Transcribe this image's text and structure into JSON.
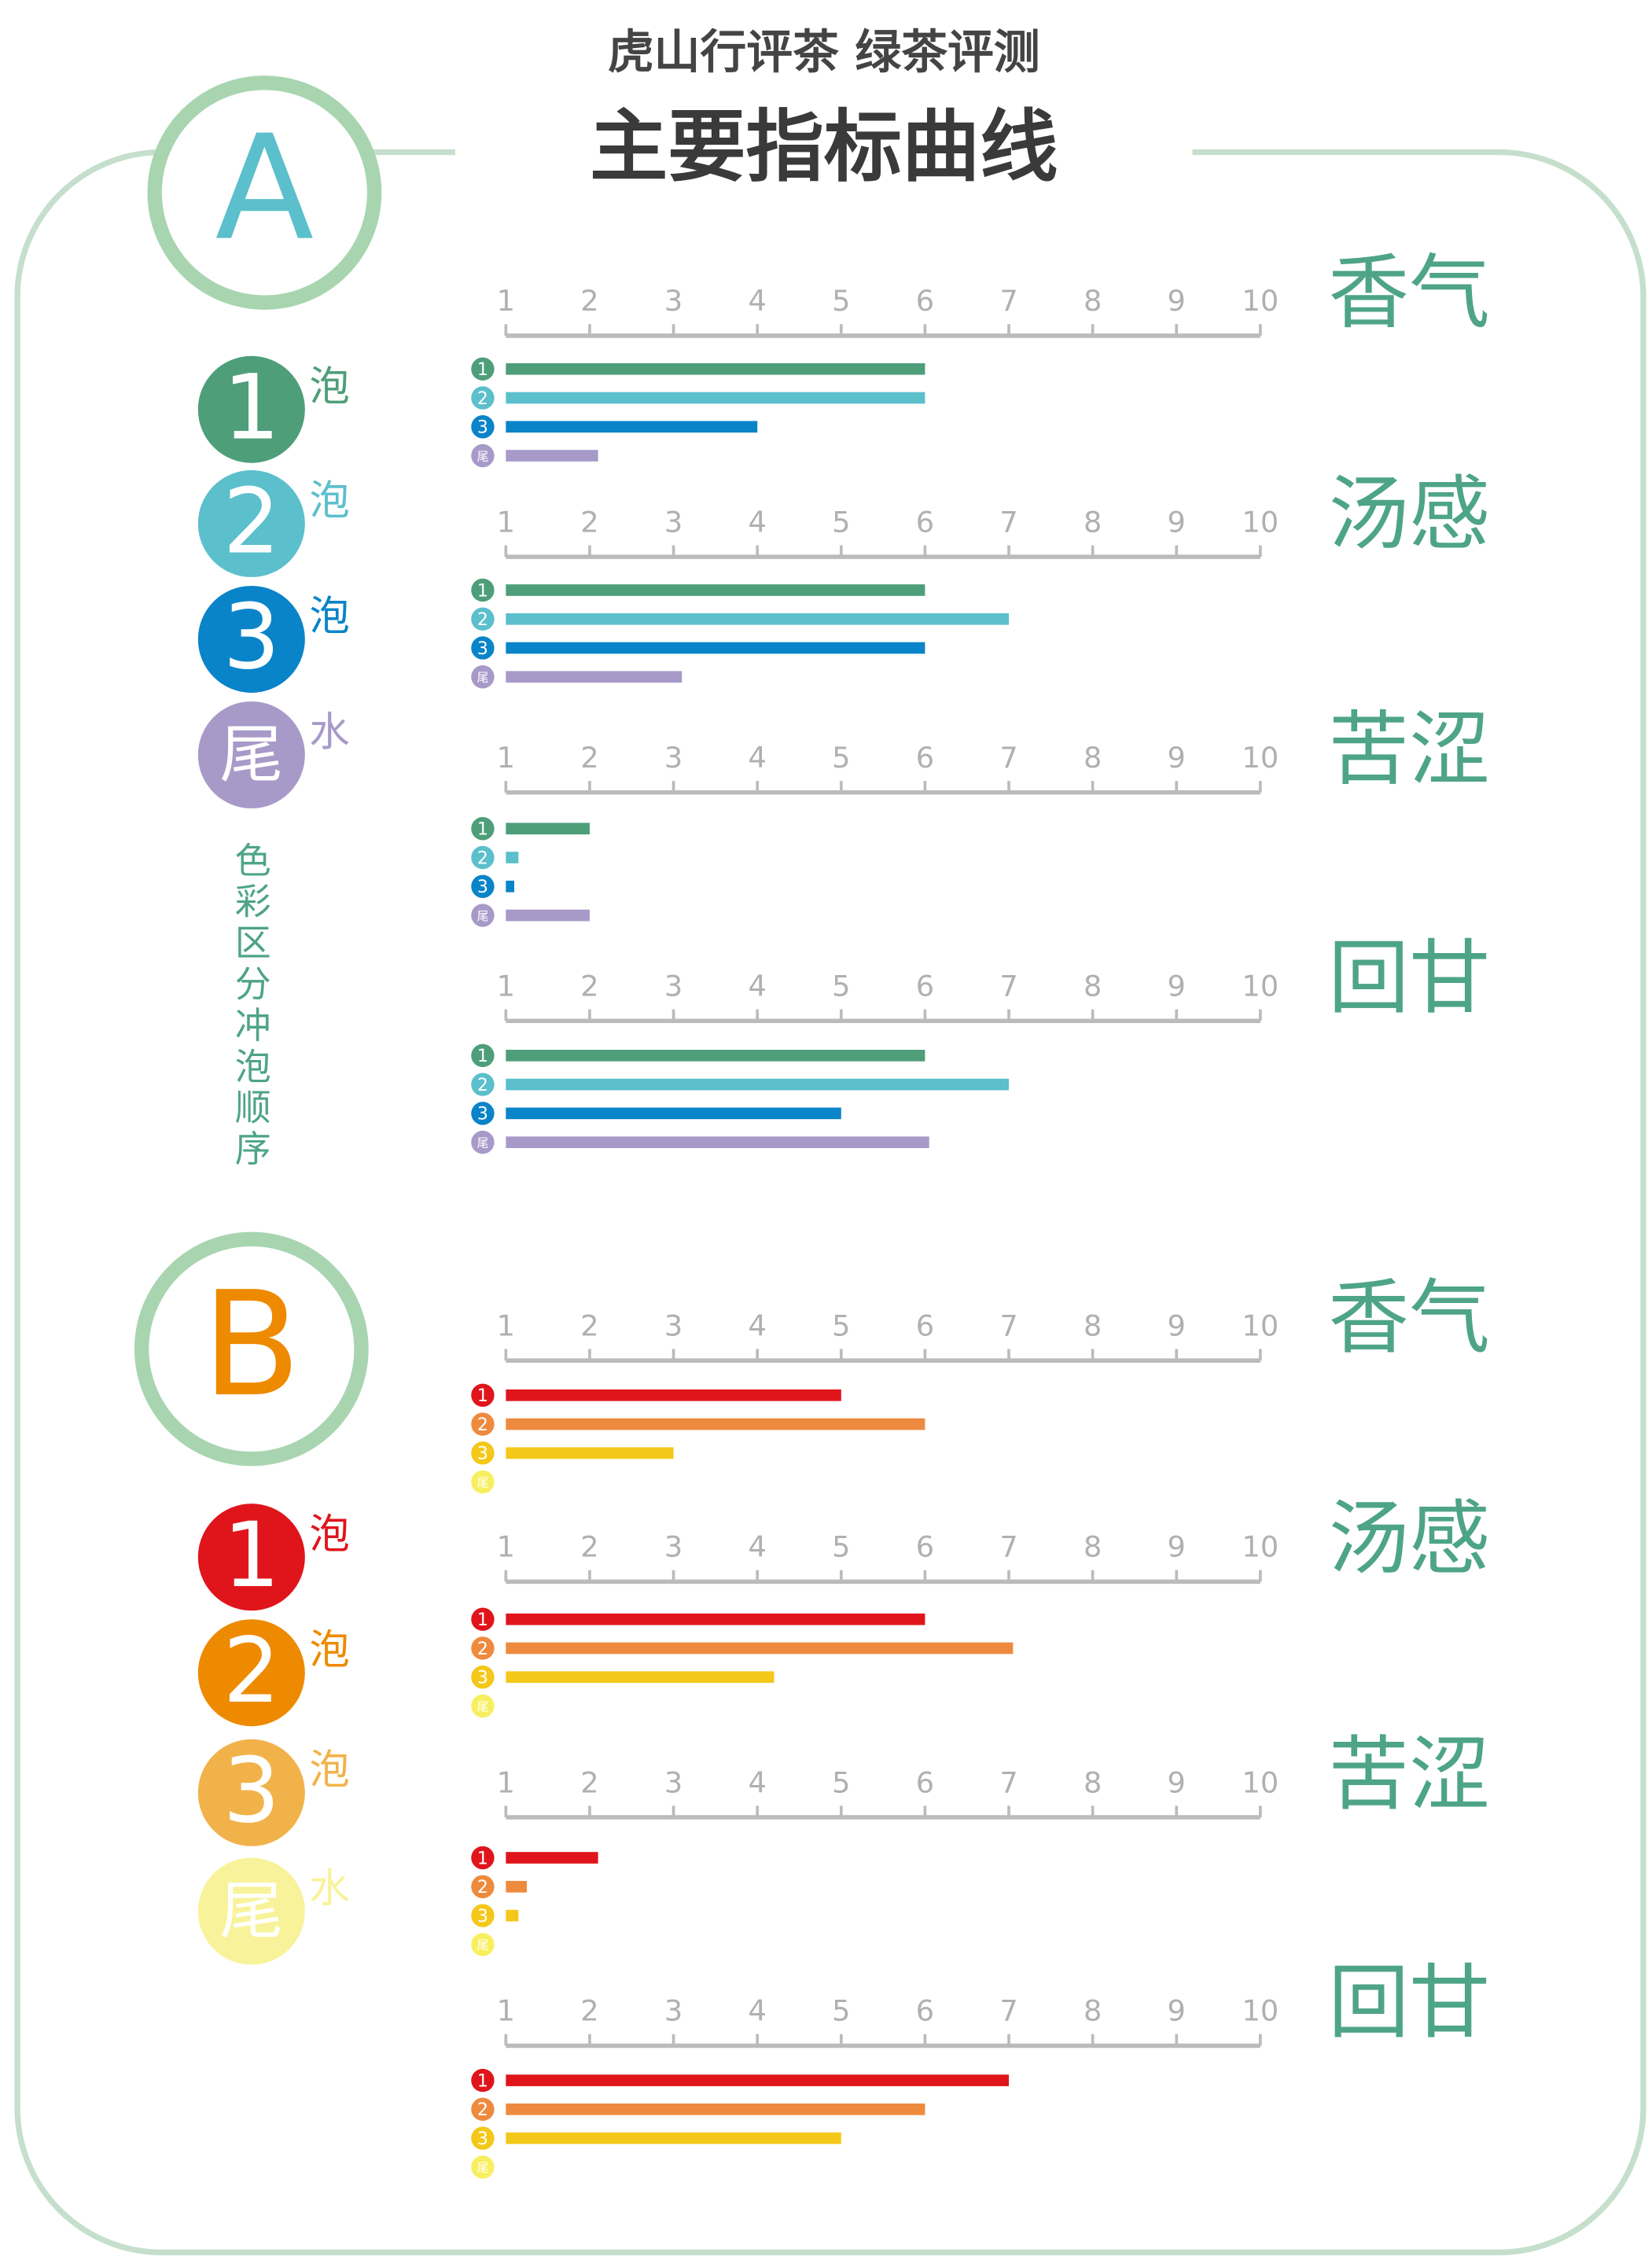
{
  "header": {
    "subtitle": "虎山行评茶  绿茶评测",
    "title": "主要指标曲线"
  },
  "note": "色彩区分冲泡顺序",
  "panels": [
    {
      "label": "A",
      "color": "#5bbfcc",
      "legend": [
        {
          "number": "1",
          "suffix": "泡",
          "color": "#4e9e7a"
        },
        {
          "number": "2",
          "suffix": "泡",
          "color": "#5bbfcc"
        },
        {
          "number": "3",
          "suffix": "泡",
          "color": "#0a84c8"
        },
        {
          "number": "尾",
          "suffix": "水",
          "color": "#a79ac9"
        }
      ]
    },
    {
      "label": "B",
      "color": "#ee8a00",
      "legend": [
        {
          "number": "1",
          "suffix": "泡",
          "color": "#e0151c"
        },
        {
          "number": "2",
          "suffix": "泡",
          "color": "#ee8a00"
        },
        {
          "number": "3",
          "suffix": "泡",
          "color": "#f2b24a"
        },
        {
          "number": "尾",
          "suffix": "水",
          "color": "#f8f39a"
        }
      ]
    }
  ],
  "chart_data": [
    {
      "type": "bar",
      "title": "香气",
      "xlim": [
        1,
        10
      ],
      "xticks": [
        1,
        2,
        3,
        4,
        5,
        6,
        7,
        8,
        9,
        10
      ],
      "series": [
        {
          "name": "1",
          "color": "#4e9e7a",
          "values": [
            6
          ]
        },
        {
          "name": "2",
          "color": "#5bbfcc",
          "values": [
            6
          ]
        },
        {
          "name": "3",
          "color": "#0a84c8",
          "values": [
            4
          ]
        },
        {
          "name": "尾",
          "color": "#a79ac9",
          "values": [
            2.1
          ]
        }
      ]
    },
    {
      "type": "bar",
      "title": "汤感",
      "xlim": [
        1,
        10
      ],
      "xticks": [
        1,
        2,
        3,
        4,
        5,
        6,
        7,
        8,
        9,
        10
      ],
      "series": [
        {
          "name": "1",
          "color": "#4e9e7a",
          "values": [
            6
          ]
        },
        {
          "name": "2",
          "color": "#5bbfcc",
          "values": [
            7
          ]
        },
        {
          "name": "3",
          "color": "#0a84c8",
          "values": [
            6
          ]
        },
        {
          "name": "尾",
          "color": "#a79ac9",
          "values": [
            3.1
          ]
        }
      ]
    },
    {
      "type": "bar",
      "title": "苦涩",
      "xlim": [
        1,
        10
      ],
      "xticks": [
        1,
        2,
        3,
        4,
        5,
        6,
        7,
        8,
        9,
        10
      ],
      "series": [
        {
          "name": "1",
          "color": "#4e9e7a",
          "values": [
            2
          ]
        },
        {
          "name": "2",
          "color": "#5bbfcc",
          "values": [
            1.15
          ]
        },
        {
          "name": "3",
          "color": "#0a84c8",
          "values": [
            1.1
          ]
        },
        {
          "name": "尾",
          "color": "#a79ac9",
          "values": [
            2
          ]
        }
      ]
    },
    {
      "type": "bar",
      "title": "回甘",
      "xlim": [
        1,
        10
      ],
      "xticks": [
        1,
        2,
        3,
        4,
        5,
        6,
        7,
        8,
        9,
        10
      ],
      "series": [
        {
          "name": "1",
          "color": "#4e9e7a",
          "values": [
            6
          ]
        },
        {
          "name": "2",
          "color": "#5bbfcc",
          "values": [
            7
          ]
        },
        {
          "name": "3",
          "color": "#0a84c8",
          "values": [
            5
          ]
        },
        {
          "name": "尾",
          "color": "#a79ac9",
          "values": [
            6.05
          ]
        }
      ]
    },
    {
      "type": "bar",
      "title": "香气",
      "xlim": [
        1,
        10
      ],
      "xticks": [
        1,
        2,
        3,
        4,
        5,
        6,
        7,
        8,
        9,
        10
      ],
      "series": [
        {
          "name": "1",
          "color": "#e0151c",
          "values": [
            5
          ]
        },
        {
          "name": "2",
          "color": "#ee8a3e",
          "values": [
            6
          ]
        },
        {
          "name": "3",
          "color": "#f4c81a",
          "values": [
            3
          ]
        },
        {
          "name": "尾",
          "color": "#f8ef60",
          "values": [
            null
          ]
        }
      ]
    },
    {
      "type": "bar",
      "title": "汤感",
      "xlim": [
        1,
        10
      ],
      "xticks": [
        1,
        2,
        3,
        4,
        5,
        6,
        7,
        8,
        9,
        10
      ],
      "series": [
        {
          "name": "1",
          "color": "#e0151c",
          "values": [
            6
          ]
        },
        {
          "name": "2",
          "color": "#ee8a3e",
          "values": [
            7.05
          ]
        },
        {
          "name": "3",
          "color": "#f4c81a",
          "values": [
            4.2
          ]
        },
        {
          "name": "尾",
          "color": "#f8ef60",
          "values": [
            null
          ]
        }
      ]
    },
    {
      "type": "bar",
      "title": "苦涩",
      "xlim": [
        1,
        10
      ],
      "xticks": [
        1,
        2,
        3,
        4,
        5,
        6,
        7,
        8,
        9,
        10
      ],
      "series": [
        {
          "name": "1",
          "color": "#e0151c",
          "values": [
            2.1
          ]
        },
        {
          "name": "2",
          "color": "#ee8a3e",
          "values": [
            1.25
          ]
        },
        {
          "name": "3",
          "color": "#f4c81a",
          "values": [
            1.15
          ]
        },
        {
          "name": "尾",
          "color": "#f8ef60",
          "values": [
            null
          ]
        }
      ]
    },
    {
      "type": "bar",
      "title": "回甘",
      "xlim": [
        1,
        10
      ],
      "xticks": [
        1,
        2,
        3,
        4,
        5,
        6,
        7,
        8,
        9,
        10
      ],
      "series": [
        {
          "name": "1",
          "color": "#e0151c",
          "values": [
            7
          ]
        },
        {
          "name": "2",
          "color": "#ee8a3e",
          "values": [
            6
          ]
        },
        {
          "name": "3",
          "color": "#f4c81a",
          "values": [
            5
          ]
        },
        {
          "name": "尾",
          "color": "#f8ef60",
          "values": [
            null
          ]
        }
      ]
    }
  ]
}
